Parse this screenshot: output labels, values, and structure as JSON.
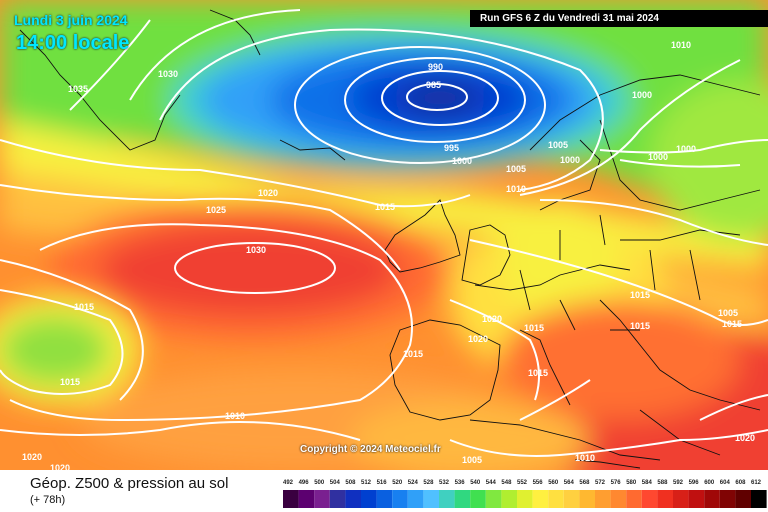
{
  "header": {
    "date": "Lundi 3 juin 2024",
    "local_time": "14:00 locale",
    "run": "Run GFS 6 Z du Vendredi 31 mai 2024"
  },
  "footer": {
    "title": "Géop. Z500 & pression au sol",
    "lead": "(+ 78h)",
    "copyright": "Copyright © 2024 Meteociel.fr"
  },
  "legend": {
    "values": [
      "492",
      "496",
      "500",
      "504",
      "508",
      "512",
      "516",
      "520",
      "524",
      "528",
      "532",
      "536",
      "540",
      "544",
      "548",
      "552",
      "556",
      "560",
      "564",
      "568",
      "572",
      "576",
      "580",
      "584",
      "588",
      "592",
      "596",
      "600",
      "604",
      "608",
      "612"
    ],
    "colors": [
      "#3a0040",
      "#5c0070",
      "#7a2090",
      "#3030a0",
      "#1030c0",
      "#0040d0",
      "#0a60e0",
      "#1880f0",
      "#30a0f8",
      "#50c0ff",
      "#40d0c0",
      "#30d880",
      "#40e050",
      "#80e840",
      "#b0ee30",
      "#e0f030",
      "#fff040",
      "#ffe040",
      "#ffd040",
      "#ffb830",
      "#ff9e30",
      "#ff8830",
      "#ff6a30",
      "#ff4830",
      "#f03020",
      "#d82018",
      "#c01010",
      "#a00808",
      "#800404",
      "#600000",
      "#000000"
    ]
  },
  "isobars": [
    {
      "label": "990"
    },
    {
      "label": "985"
    },
    {
      "label": "995"
    },
    {
      "label": "1000"
    },
    {
      "label": "1000"
    },
    {
      "label": "1000"
    },
    {
      "label": "1000"
    },
    {
      "label": "1000"
    },
    {
      "label": "1005"
    },
    {
      "label": "1005"
    },
    {
      "label": "1010"
    },
    {
      "label": "1010"
    },
    {
      "label": "1035"
    },
    {
      "label": "1030"
    },
    {
      "label": "1030"
    },
    {
      "label": "1025"
    },
    {
      "label": "1020"
    },
    {
      "label": "1015"
    },
    {
      "label": "1015"
    },
    {
      "label": "1015"
    },
    {
      "label": "1015"
    },
    {
      "label": "1015"
    },
    {
      "label": "1015"
    },
    {
      "label": "1015"
    },
    {
      "label": "1020"
    },
    {
      "label": "1020"
    },
    {
      "label": "1015"
    },
    {
      "label": "1010"
    },
    {
      "label": "1020"
    },
    {
      "label": "1020"
    },
    {
      "label": "1020"
    },
    {
      "label": "1005"
    },
    {
      "label": "1010"
    },
    {
      "label": "1005"
    },
    {
      "label": "1015"
    }
  ]
}
